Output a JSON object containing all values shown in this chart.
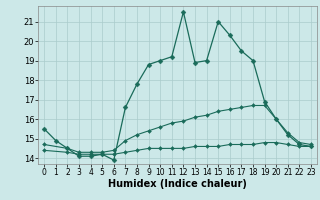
{
  "xlabel": "Humidex (Indice chaleur)",
  "background_color": "#cce8e8",
  "grid_color": "#aacccc",
  "line_color": "#1a6b5a",
  "xlim": [
    -0.5,
    23.5
  ],
  "ylim": [
    13.7,
    21.8
  ],
  "yticks": [
    14,
    15,
    16,
    17,
    18,
    19,
    20,
    21
  ],
  "xticks": [
    0,
    1,
    2,
    3,
    4,
    5,
    6,
    7,
    8,
    9,
    10,
    11,
    12,
    13,
    14,
    15,
    16,
    17,
    18,
    19,
    20,
    21,
    22,
    23
  ],
  "line1_x": [
    0,
    1,
    2,
    3,
    4,
    5,
    6,
    7,
    8,
    9,
    10,
    11,
    12,
    13,
    14,
    15,
    16,
    17,
    18,
    19,
    20,
    21,
    22,
    23
  ],
  "line1_y": [
    15.5,
    14.9,
    14.5,
    14.1,
    14.1,
    14.2,
    13.9,
    16.6,
    17.8,
    18.8,
    19.0,
    19.2,
    21.5,
    18.9,
    19.0,
    21.0,
    20.3,
    19.5,
    19.0,
    16.9,
    16.0,
    15.2,
    14.7,
    14.6
  ],
  "line2_x": [
    0,
    2,
    3,
    4,
    5,
    6,
    7,
    8,
    9,
    10,
    11,
    12,
    13,
    14,
    15,
    16,
    17,
    18,
    19,
    20,
    21,
    22,
    23
  ],
  "line2_y": [
    14.7,
    14.5,
    14.3,
    14.3,
    14.3,
    14.4,
    14.9,
    15.2,
    15.4,
    15.6,
    15.8,
    15.9,
    16.1,
    16.2,
    16.4,
    16.5,
    16.6,
    16.7,
    16.7,
    16.0,
    15.3,
    14.8,
    14.7
  ],
  "line3_x": [
    0,
    2,
    3,
    4,
    5,
    6,
    7,
    8,
    9,
    10,
    11,
    12,
    13,
    14,
    15,
    16,
    17,
    18,
    19,
    20,
    21,
    22,
    23
  ],
  "line3_y": [
    14.4,
    14.3,
    14.2,
    14.2,
    14.2,
    14.2,
    14.3,
    14.4,
    14.5,
    14.5,
    14.5,
    14.5,
    14.6,
    14.6,
    14.6,
    14.7,
    14.7,
    14.7,
    14.8,
    14.8,
    14.7,
    14.6,
    14.6
  ]
}
